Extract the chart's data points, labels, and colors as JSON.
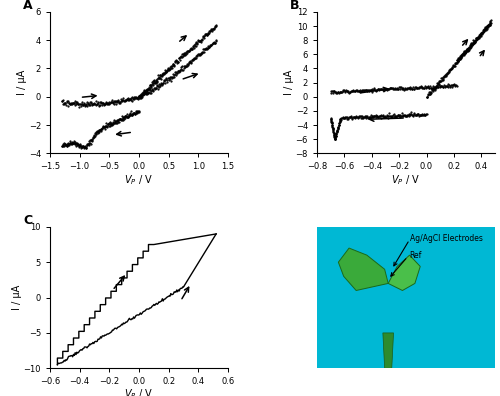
{
  "figsize": [
    5.0,
    3.96
  ],
  "dpi": 100,
  "panel_A": {
    "xlim": [
      -1.5,
      1.5
    ],
    "ylim": [
      -4,
      6
    ],
    "xticks": [
      -1.5,
      -1.0,
      -0.5,
      0.0,
      0.5,
      1.0,
      1.5
    ],
    "yticks": [
      -4,
      -2,
      0,
      2,
      4,
      6
    ],
    "xlabel": "V_P / V",
    "ylabel": "I / μA",
    "label": "A"
  },
  "panel_B": {
    "xlim": [
      -0.8,
      0.5
    ],
    "ylim": [
      -8,
      12
    ],
    "xticks": [
      -0.8,
      -0.6,
      -0.4,
      -0.2,
      0.0,
      0.2,
      0.4
    ],
    "yticks": [
      -8,
      -6,
      -4,
      -2,
      0,
      2,
      4,
      6,
      8,
      10,
      12
    ],
    "xlabel": "V_P / V",
    "ylabel": "I / μA",
    "label": "B"
  },
  "panel_C": {
    "xlim": [
      -0.6,
      0.6
    ],
    "ylim": [
      -10,
      10
    ],
    "xticks": [
      -0.6,
      -0.4,
      -0.2,
      0.0,
      0.2,
      0.4,
      0.6
    ],
    "yticks": [
      -10,
      -5,
      0,
      5,
      10
    ],
    "xlabel": "V_P / V",
    "ylabel": "I / μA",
    "label": "C"
  },
  "image_panel": {
    "bg_color": "#00aacc",
    "text1": "Ag/AgCl Electrodes",
    "text2": "Ref"
  }
}
